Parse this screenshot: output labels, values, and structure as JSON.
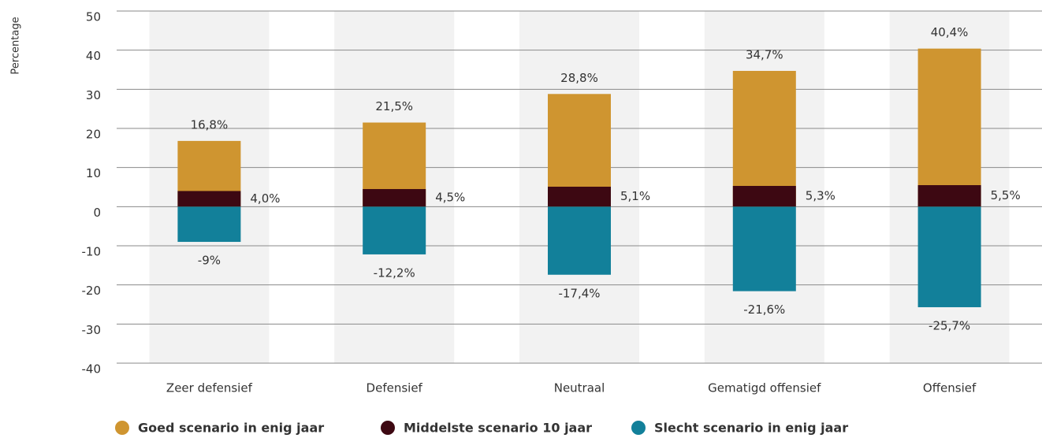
{
  "chart_data": {
    "type": "bar",
    "y_label": "Percentage",
    "categories": [
      "Zeer defensief",
      "Defensief",
      "Neutraal",
      "Gematigd offensief",
      "Offensief"
    ],
    "series": [
      {
        "name": "Goed scenario in enig jaar",
        "color": "#cf9530",
        "values": [
          16.8,
          21.5,
          28.8,
          34.7,
          40.4
        ],
        "value_labels": [
          "16,8%",
          "21,5%",
          "28,8%",
          "34,7%",
          "40,4%"
        ]
      },
      {
        "name": "Middelste scenario 10 jaar",
        "color": "#3d0812",
        "values": [
          4.0,
          4.5,
          5.1,
          5.3,
          5.5
        ],
        "value_labels": [
          "4,0%",
          "4,5%",
          "5,1%",
          "5,3%",
          "5,5%"
        ]
      },
      {
        "name": "Slecht scenario in enig jaar",
        "color": "#12809a",
        "values": [
          -9,
          -12.2,
          -17.4,
          -21.6,
          -25.7
        ],
        "value_labels": [
          "-9%",
          "-12,2%",
          "-17,4%",
          "-21,6%",
          "-25,7%"
        ]
      }
    ],
    "ylim": [
      -40,
      50
    ],
    "yticks": [
      -40,
      -30,
      -20,
      -10,
      0,
      10,
      20,
      30,
      40,
      50
    ],
    "grid": true,
    "legend": "bottom"
  }
}
